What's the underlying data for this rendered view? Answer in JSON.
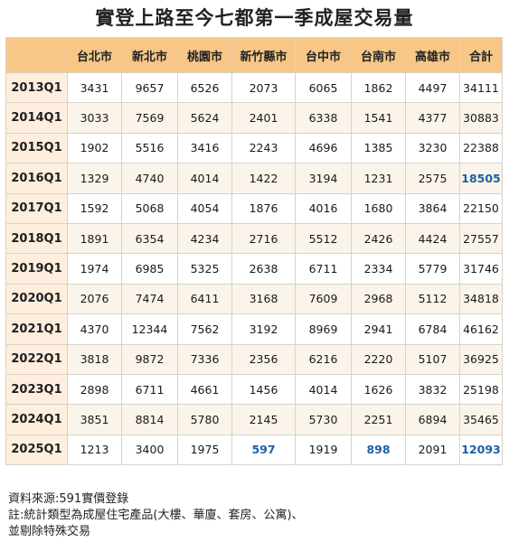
{
  "title": "實登上路至今七都第一季成屋交易量",
  "chart_data": {
    "type": "table",
    "title": "實登上路至今七都第一季成屋交易量",
    "columns": [
      "",
      "台北市",
      "新北市",
      "桃園市",
      "新竹縣市",
      "台中市",
      "台南市",
      "高雄市",
      "合計"
    ],
    "rows": [
      {
        "label": "2013Q1",
        "values": [
          "3431",
          "9657",
          "6526",
          "2073",
          "6065",
          "1862",
          "4497",
          "34111"
        ]
      },
      {
        "label": "2014Q1",
        "values": [
          "3033",
          "7569",
          "5624",
          "2401",
          "6338",
          "1541",
          "4377",
          "30883"
        ]
      },
      {
        "label": "2015Q1",
        "values": [
          "1902",
          "5516",
          "3416",
          "2243",
          "4696",
          "1385",
          "3230",
          "22388"
        ]
      },
      {
        "label": "2016Q1",
        "values": [
          "1329",
          "4740",
          "4014",
          "1422",
          "3194",
          "1231",
          "2575",
          "18505"
        ]
      },
      {
        "label": "2017Q1",
        "values": [
          "1592",
          "5068",
          "4054",
          "1876",
          "4016",
          "1680",
          "3864",
          "22150"
        ]
      },
      {
        "label": "2018Q1",
        "values": [
          "1891",
          "6354",
          "4234",
          "2716",
          "5512",
          "2426",
          "4424",
          "27557"
        ]
      },
      {
        "label": "2019Q1",
        "values": [
          "1974",
          "6985",
          "5325",
          "2638",
          "6711",
          "2334",
          "5779",
          "31746"
        ]
      },
      {
        "label": "2020Q1",
        "values": [
          "2076",
          "7474",
          "6411",
          "3168",
          "7609",
          "2968",
          "5112",
          "34818"
        ]
      },
      {
        "label": "2021Q1",
        "values": [
          "4370",
          "12344",
          "7562",
          "3192",
          "8969",
          "2941",
          "6784",
          "46162"
        ]
      },
      {
        "label": "2022Q1",
        "values": [
          "3818",
          "9872",
          "7336",
          "2356",
          "6216",
          "2220",
          "5107",
          "36925"
        ]
      },
      {
        "label": "2023Q1",
        "values": [
          "2898",
          "6711",
          "4661",
          "1456",
          "4014",
          "1626",
          "3832",
          "25198"
        ]
      },
      {
        "label": "2024Q1",
        "values": [
          "3851",
          "8814",
          "5780",
          "2145",
          "5730",
          "2251",
          "6894",
          "35465"
        ]
      },
      {
        "label": "2025Q1",
        "values": [
          "1213",
          "3400",
          "1975",
          "597",
          "1919",
          "898",
          "2091",
          "12093"
        ]
      }
    ],
    "highlighted_cells": [
      {
        "row": "2016Q1",
        "column": "合計"
      },
      {
        "row": "2025Q1",
        "column": "新竹縣市"
      },
      {
        "row": "2025Q1",
        "column": "台南市"
      },
      {
        "row": "2025Q1",
        "column": "合計"
      }
    ]
  },
  "notes": {
    "source": "資料來源:591實價登錄",
    "note_line1": "註:統計類型為成屋住宅產品(大樓、華廈、套房、公寓)、",
    "note_line2": "並剔除特殊交易"
  },
  "colors": {
    "header_bg": "#f7c787",
    "row_alt_bg": "#fbf4ea",
    "highlight_text": "#1c5fa8"
  }
}
